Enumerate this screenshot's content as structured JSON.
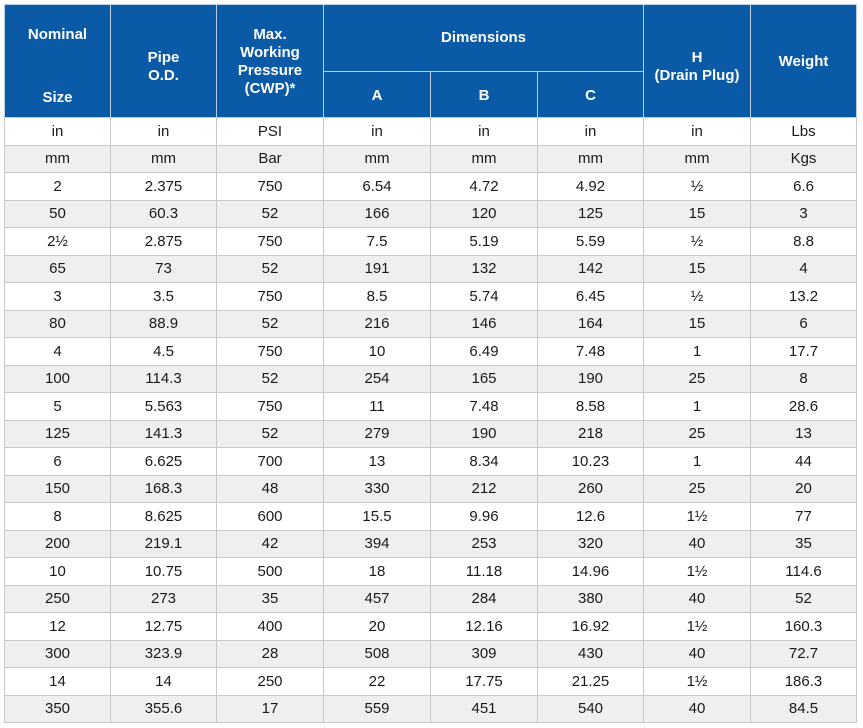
{
  "header": {
    "nominal": [
      "Nominal",
      "Size"
    ],
    "pipe": [
      "Pipe",
      "O.D."
    ],
    "pressure": [
      "Max. Working Pressure",
      "(CWP)*"
    ],
    "dimensions": "Dimensions",
    "dim_a": "A",
    "dim_b": "B",
    "dim_c": "C",
    "h": [
      "H",
      "(Drain Plug)"
    ],
    "weight": "Weight"
  },
  "rows": [
    [
      "in",
      "in",
      "PSI",
      "in",
      "in",
      "in",
      "in",
      "Lbs"
    ],
    [
      "mm",
      "mm",
      "Bar",
      "mm",
      "mm",
      "mm",
      "mm",
      "Kgs"
    ],
    [
      "2",
      "2.375",
      "750",
      "6.54",
      "4.72",
      "4.92",
      "½",
      "6.6"
    ],
    [
      "50",
      "60.3",
      "52",
      "166",
      "120",
      "125",
      "15",
      "3"
    ],
    [
      "2½",
      "2.875",
      "750",
      "7.5",
      "5.19",
      "5.59",
      "½",
      "8.8"
    ],
    [
      "65",
      "73",
      "52",
      "191",
      "132",
      "142",
      "15",
      "4"
    ],
    [
      "3",
      "3.5",
      "750",
      "8.5",
      "5.74",
      "6.45",
      "½",
      "13.2"
    ],
    [
      "80",
      "88.9",
      "52",
      "216",
      "146",
      "164",
      "15",
      "6"
    ],
    [
      "4",
      "4.5",
      "750",
      "10",
      "6.49",
      "7.48",
      "1",
      "17.7"
    ],
    [
      "100",
      "114.3",
      "52",
      "254",
      "165",
      "190",
      "25",
      "8"
    ],
    [
      "5",
      "5.563",
      "750",
      "11",
      "7.48",
      "8.58",
      "1",
      "28.6"
    ],
    [
      "125",
      "141.3",
      "52",
      "279",
      "190",
      "218",
      "25",
      "13"
    ],
    [
      "6",
      "6.625",
      "700",
      "13",
      "8.34",
      "10.23",
      "1",
      "44"
    ],
    [
      "150",
      "168.3",
      "48",
      "330",
      "212",
      "260",
      "25",
      "20"
    ],
    [
      "8",
      "8.625",
      "600",
      "15.5",
      "9.96",
      "12.6",
      "1½",
      "77"
    ],
    [
      "200",
      "219.1",
      "42",
      "394",
      "253",
      "320",
      "40",
      "35"
    ],
    [
      "10",
      "10.75",
      "500",
      "18",
      "11.18",
      "14.96",
      "1½",
      "114.6"
    ],
    [
      "250",
      "273",
      "35",
      "457",
      "284",
      "380",
      "40",
      "52"
    ],
    [
      "12",
      "12.75",
      "400",
      "20",
      "12.16",
      "16.92",
      "1½",
      "160.3"
    ],
    [
      "300",
      "323.9",
      "28",
      "508",
      "309",
      "430",
      "40",
      "72.7"
    ],
    [
      "14",
      "14",
      "250",
      "22",
      "17.75",
      "21.25",
      "1½",
      "186.3"
    ],
    [
      "350",
      "355.6",
      "17",
      "559",
      "451",
      "540",
      "40",
      "84.5"
    ]
  ]
}
